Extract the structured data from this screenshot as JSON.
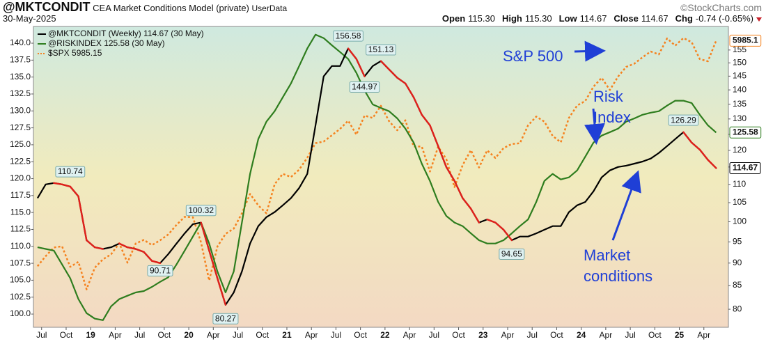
{
  "chart_data": {
    "type": "line",
    "title": "@MKTCONDIT",
    "subtitle": "CEA Market Conditions Model (private)",
    "source": "UserData",
    "watermark": "©StockCharts.com",
    "date": "30-May-2025",
    "quote": [
      {
        "label": "Open",
        "value": "115.30"
      },
      {
        "label": "High",
        "value": "115.30"
      },
      {
        "label": "Low",
        "value": "114.67"
      },
      {
        "label": "Close",
        "value": "114.67"
      },
      {
        "label": "Chg",
        "value": "-0.74 (-0.65%)"
      }
    ],
    "x": [
      "2018-06",
      "2018-07",
      "2018-08",
      "2018-09",
      "2018-10",
      "2018-11",
      "2018-12",
      "2019-01",
      "2019-02",
      "2019-03",
      "2019-04",
      "2019-05",
      "2019-06",
      "2019-07",
      "2019-08",
      "2019-09",
      "2019-10",
      "2019-11",
      "2019-12",
      "2020-01",
      "2020-02",
      "2020-03",
      "2020-04",
      "2020-05",
      "2020-06",
      "2020-07",
      "2020-08",
      "2020-09",
      "2020-10",
      "2020-11",
      "2020-12",
      "2021-01",
      "2021-02",
      "2021-03",
      "2021-04",
      "2021-05",
      "2021-06",
      "2021-07",
      "2021-08",
      "2021-09",
      "2021-10",
      "2021-11",
      "2021-12",
      "2022-01",
      "2022-02",
      "2022-03",
      "2022-04",
      "2022-05",
      "2022-06",
      "2022-07",
      "2022-08",
      "2022-09",
      "2022-10",
      "2022-11",
      "2022-12",
      "2023-01",
      "2023-02",
      "2023-03",
      "2023-04",
      "2023-05",
      "2023-06",
      "2023-07",
      "2023-08",
      "2023-09",
      "2023-10",
      "2023-11",
      "2023-12",
      "2024-01",
      "2024-02",
      "2024-03",
      "2024-04",
      "2024-05",
      "2024-06",
      "2024-07",
      "2024-08",
      "2024-09",
      "2024-10",
      "2024-11",
      "2024-12",
      "2025-01",
      "2025-02",
      "2025-03",
      "2025-04",
      "2025-05"
    ],
    "xlim": [
      "2018-06",
      "2025-07"
    ],
    "xticks": [
      {
        "value": "2018-07",
        "label": "Jul"
      },
      {
        "value": "2018-10",
        "label": "Oct"
      },
      {
        "value": "2019-01",
        "label": "19"
      },
      {
        "value": "2019-04",
        "label": "Apr"
      },
      {
        "value": "2019-07",
        "label": "Jul"
      },
      {
        "value": "2019-10",
        "label": "Oct"
      },
      {
        "value": "2020-01",
        "label": "20"
      },
      {
        "value": "2020-04",
        "label": "Apr"
      },
      {
        "value": "2020-07",
        "label": "Jul"
      },
      {
        "value": "2020-10",
        "label": "Oct"
      },
      {
        "value": "2021-01",
        "label": "21"
      },
      {
        "value": "2021-04",
        "label": "Apr"
      },
      {
        "value": "2021-07",
        "label": "Jul"
      },
      {
        "value": "2021-10",
        "label": "Oct"
      },
      {
        "value": "2022-01",
        "label": "22"
      },
      {
        "value": "2022-04",
        "label": "Apr"
      },
      {
        "value": "2022-07",
        "label": "Jul"
      },
      {
        "value": "2022-10",
        "label": "Oct"
      },
      {
        "value": "2023-01",
        "label": "23"
      },
      {
        "value": "2023-04",
        "label": "Apr"
      },
      {
        "value": "2023-07",
        "label": "Jul"
      },
      {
        "value": "2023-10",
        "label": "Oct"
      },
      {
        "value": "2024-01",
        "label": "24"
      },
      {
        "value": "2024-04",
        "label": "Apr"
      },
      {
        "value": "2024-07",
        "label": "Jul"
      },
      {
        "value": "2024-10",
        "label": "Oct"
      },
      {
        "value": "2025-01",
        "label": "25"
      },
      {
        "value": "2025-04",
        "label": "Apr"
      }
    ],
    "ylim": [
      98.05,
      142.47
    ],
    "yticks": [
      {
        "value": 100,
        "label": "100.0"
      },
      102.5,
      {
        "value": 105,
        "label": "105.0"
      },
      107.5,
      {
        "value": 110,
        "label": "110.0"
      },
      112.5,
      {
        "value": 115,
        "label": "115.0"
      },
      117.5,
      {
        "value": 120,
        "label": "120.0"
      },
      122.5,
      {
        "value": 125,
        "label": "125.0"
      },
      127.5,
      {
        "value": 130,
        "label": "130.0"
      },
      132.5,
      {
        "value": 135,
        "label": "135.0"
      },
      137.5,
      {
        "value": 140,
        "label": "140.0"
      }
    ],
    "y2lim": [
      76.4,
      164.6
    ],
    "y2log": true,
    "y2ticks": [
      80,
      85,
      90,
      95,
      100,
      105,
      110,
      115,
      120,
      125,
      130,
      135,
      140,
      145,
      150,
      155
    ],
    "y3lim": [
      2195,
      6290
    ],
    "y3log": true,
    "series": [
      {
        "name": "@MKTCONDIT (Weekly) 114.67 (30 May)",
        "color": "#000000",
        "down_color": "#e0201b",
        "axis": "y2",
        "end_label": "114.67",
        "values": [
          106.2,
          110.0,
          110.4,
          110.0,
          109.4,
          106.7,
          95.4,
          93.7,
          93.3,
          93.7,
          94.6,
          93.7,
          93.3,
          92.6,
          90.5,
          90.0,
          92.1,
          94.6,
          97.1,
          99.4,
          99.8,
          92.9,
          86.6,
          80.9,
          83.5,
          88.1,
          94.6,
          98.9,
          101.2,
          102.5,
          104.3,
          106.2,
          109.0,
          113.0,
          127.9,
          144.9,
          148.8,
          148.8,
          155.6,
          151.5,
          144.9,
          148.8,
          150.7,
          147.5,
          144.4,
          142.3,
          137.4,
          131.4,
          127.9,
          121.3,
          115.0,
          111.0,
          106.2,
          103.4,
          99.8,
          100.6,
          99.8,
          98.0,
          95.4,
          96.3,
          96.3,
          97.1,
          98.0,
          98.9,
          98.9,
          102.5,
          104.3,
          105.2,
          108.1,
          112.0,
          114.0,
          115.0,
          115.4,
          116.0,
          116.6,
          117.5,
          119.2,
          121.3,
          123.5,
          125.7,
          122.4,
          120.2,
          117.1,
          114.67
        ]
      },
      {
        "name": "@RISKINDEX 125.58 (30 May)",
        "color": "#2e7d1e",
        "axis": "y2",
        "end_label": "125.58",
        "values": [
          93.7,
          93.3,
          92.9,
          89.7,
          86.6,
          82.1,
          79.2,
          78.1,
          77.8,
          80.6,
          82.1,
          82.8,
          83.5,
          83.8,
          84.7,
          85.8,
          86.8,
          89.7,
          92.9,
          96.3,
          99.8,
          94.6,
          88.1,
          83.5,
          88.1,
          99.8,
          113.0,
          123.5,
          129.1,
          132.6,
          137.4,
          142.3,
          148.8,
          155.6,
          161.2,
          159.8,
          156.9,
          154.2,
          151.5,
          146.2,
          139.8,
          134.9,
          133.7,
          132.6,
          130.2,
          126.8,
          122.4,
          116.0,
          111.0,
          105.2,
          101.5,
          99.8,
          98.9,
          97.1,
          95.4,
          94.6,
          94.6,
          95.4,
          97.1,
          98.9,
          100.6,
          105.2,
          111.0,
          113.0,
          111.4,
          112.0,
          114.0,
          118.1,
          122.4,
          124.6,
          125.7,
          126.8,
          129.1,
          130.2,
          131.4,
          132.1,
          132.6,
          134.5,
          136.2,
          136.2,
          135.4,
          131.4,
          127.9,
          125.58
        ]
      },
      {
        "name": "$SPX 5985.15",
        "color": "#f5821f",
        "dash": true,
        "axis": "y3",
        "end_label": "5985.1",
        "values": [
          2718,
          2816,
          2902,
          2914,
          2712,
          2760,
          2507,
          2704,
          2784,
          2834,
          2946,
          2752,
          2942,
          2980,
          2926,
          2977,
          3038,
          3141,
          3231,
          3226,
          2954,
          2585,
          2912,
          3044,
          3100,
          3271,
          3500,
          3363,
          3270,
          3622,
          3756,
          3714,
          3811,
          3973,
          4181,
          4204,
          4298,
          4395,
          4523,
          4308,
          4605,
          4567,
          4766,
          4516,
          4374,
          4530,
          4132,
          4132,
          3785,
          4130,
          3955,
          3586,
          3872,
          4080,
          3840,
          4077,
          3970,
          4109,
          4169,
          4180,
          4450,
          4589,
          4508,
          4288,
          4194,
          4568,
          4770,
          4846,
          5096,
          5254,
          5036,
          5278,
          5460,
          5522,
          5648,
          5762,
          5705,
          6032,
          5882,
          6041,
          5955,
          5612,
          5569,
          5985.15
        ]
      }
    ],
    "point_labels": [
      {
        "x": "2018-10",
        "value": 110.74
      },
      {
        "x": "2020-02",
        "value": 100.32
      },
      {
        "x": "2019-09",
        "value": 90.71
      },
      {
        "x": "2020-05",
        "value": 80.27
      },
      {
        "x": "2021-08",
        "value": 156.58
      },
      {
        "x": "2021-10",
        "value": 144.97
      },
      {
        "x": "2021-12",
        "value": 151.13
      },
      {
        "x": "2023-04",
        "value": 94.65
      },
      {
        "x": "2025-01",
        "value": 126.29
      }
    ],
    "annotations": [
      [
        "S&P 500"
      ],
      [
        "Risk",
        "Index"
      ],
      [
        "Market",
        "conditions"
      ]
    ]
  }
}
